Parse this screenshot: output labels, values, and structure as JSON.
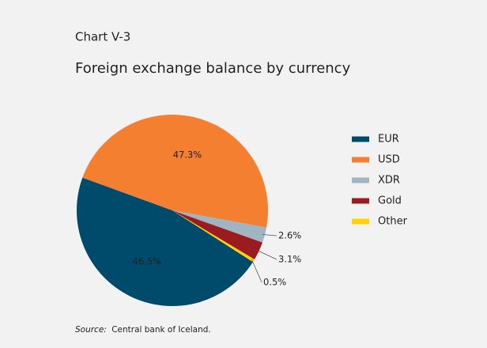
{
  "chart_data": {
    "type": "pie",
    "label": "Chart V-3",
    "title": "Foreign exchange balance by currency",
    "categories": [
      "EUR",
      "USD",
      "XDR",
      "Gold",
      "Other"
    ],
    "values": [
      46.5,
      47.3,
      2.6,
      3.1,
      0.5
    ],
    "value_labels": [
      "46.5%",
      "47.3%",
      "2.6%",
      "3.1%",
      "0.5%"
    ],
    "colors": [
      "#004b6b",
      "#f47f30",
      "#9fb5c2",
      "#9b1c20",
      "#ffd200"
    ],
    "legend": "right",
    "source_label": "Source:",
    "source": "Central bank of Iceland."
  }
}
